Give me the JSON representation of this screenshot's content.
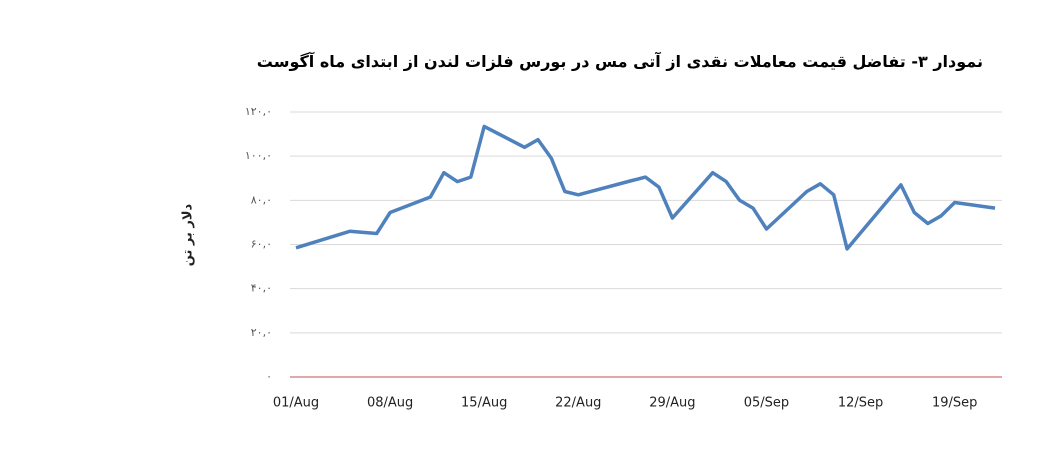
{
  "chart_data": {
    "type": "line",
    "title": "نمودار ۳- تفاضل قیمت معاملات نقدی از آتی مس در بورس فلزات لندن از ابتدای ماه آگوست",
    "y_label": "دلار بر تن",
    "x": [
      "01/Aug",
      "05/Aug",
      "07/Aug",
      "08/Aug",
      "11/Aug",
      "12/Aug",
      "13/Aug",
      "14/Aug",
      "15/Aug",
      "18/Aug",
      "19/Aug",
      "20/Aug",
      "21/Aug",
      "22/Aug",
      "26/Aug",
      "27/Aug",
      "28/Aug",
      "29/Aug",
      "01/Sep",
      "02/Sep",
      "03/Sep",
      "04/Sep",
      "05/Sep",
      "08/Sep",
      "09/Sep",
      "10/Sep",
      "11/Sep",
      "15/Sep",
      "16/Sep",
      "17/Sep",
      "18/Sep",
      "19/Sep",
      "22/Sep"
    ],
    "values": [
      58.5,
      66,
      65,
      74.5,
      81.5,
      92.5,
      88.5,
      90.5,
      113.5,
      104,
      107.5,
      99,
      84,
      82.5,
      89,
      90.5,
      86,
      72,
      92.5,
      88.5,
      80,
      76.5,
      67,
      84,
      87.5,
      82.5,
      58,
      87,
      74.5,
      69.5,
      73,
      79,
      76.5
    ],
    "color": "#4f81bd",
    "xlim": [
      "01/Aug",
      "22/Sep"
    ],
    "xticks": [
      "01/Aug",
      "08/Aug",
      "15/Aug",
      "22/Aug",
      "29/Aug",
      "05/Sep",
      "12/Sep",
      "19/Sep"
    ],
    "ylim": [
      0,
      120
    ],
    "yticks": [
      {
        "value": 0,
        "label": "۰"
      },
      {
        "value": 20,
        "label": "۲۰,۰"
      },
      {
        "value": 40,
        "label": "۴۰,۰"
      },
      {
        "value": 60,
        "label": "۶۰,۰"
      },
      {
        "value": 80,
        "label": "۸۰,۰"
      },
      {
        "value": 100,
        "label": "۱۰۰,۰"
      },
      {
        "value": 120,
        "label": "۱۲۰,۰"
      }
    ],
    "grid": true,
    "grid_color": "#d9d9d9",
    "axis_color": "#c0504d"
  }
}
